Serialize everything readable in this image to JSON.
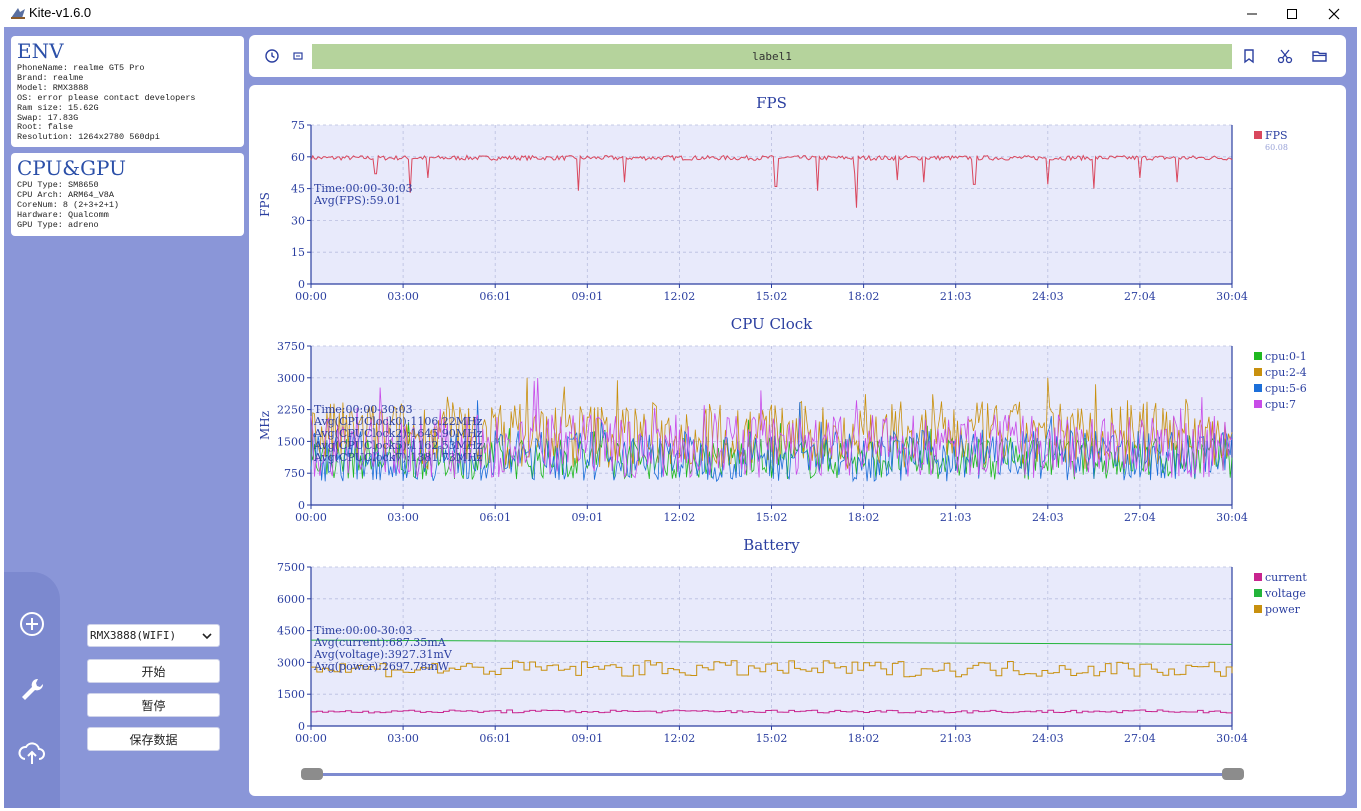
{
  "window": {
    "title": "Kite-v1.6.0"
  },
  "env": {
    "title": "ENV",
    "lines": [
      "PhoneName: realme GT5 Pro",
      "Brand: realme",
      "Model: RMX3888",
      "OS: error please contact developers",
      "Ram size: 15.62G",
      "Swap: 17.83G",
      "Root: false",
      "Resolution: 1264x2780 560dpi"
    ]
  },
  "cpugpu": {
    "title": "CPU&GPU",
    "lines": [
      "CPU Type: SM8650",
      "CPU Arch: ARM64_V8A",
      "CoreNum: 8 (2+3+2+1)",
      "Hardware: Qualcomm",
      "GPU Type: adreno"
    ]
  },
  "controls": {
    "device": "RMX3888(WIFI)",
    "start_label": "开始",
    "pause_label": "暂停",
    "save_label": "保存数据"
  },
  "toolbar": {
    "label": "label1"
  },
  "colors": {
    "background": "#8a96d8",
    "plot_bg": "#e8eafb",
    "axis": "#2b3fa0",
    "fps": "#d9475d",
    "cpu01": "#1fb81f",
    "cpu24": "#c8900e",
    "cpu56": "#1c6fd9",
    "cpu7": "#c84ce8",
    "current": "#c8248f",
    "voltage": "#22b43a",
    "power": "#c8900e",
    "label_bg": "#b5d39c"
  },
  "icons": {
    "left_dock": [
      "plus-circle-icon",
      "wrench-icon",
      "cloud-upload-icon"
    ],
    "toolbar_left": [
      "clock-icon",
      "screen-icon"
    ],
    "toolbar_right": [
      "bookmark-icon",
      "scissors-icon",
      "folder-open-icon"
    ]
  },
  "chart_data": [
    {
      "type": "line",
      "title": "FPS",
      "ylabel": "FPS",
      "ylim": [
        0,
        75
      ],
      "yticks": [
        "0",
        "15",
        "30",
        "45",
        "60",
        "75"
      ],
      "xticks": [
        "00:00",
        "03:00",
        "06:01",
        "09:01",
        "12:02",
        "15:02",
        "18:02",
        "21:03",
        "24:03",
        "27:04",
        "30:04"
      ],
      "series": [
        {
          "name": "FPS",
          "legend_sub": "60.08",
          "mean": 59.5,
          "dips": [
            [
              0.07,
              52
            ],
            [
              0.108,
              43
            ],
            [
              0.127,
              50
            ],
            [
              0.29,
              44
            ],
            [
              0.34,
              48
            ],
            [
              0.505,
              46
            ],
            [
              0.55,
              44
            ],
            [
              0.59,
              52
            ],
            [
              0.637,
              49
            ],
            [
              0.665,
              48
            ],
            [
              0.592,
              36
            ],
            [
              0.72,
              47
            ],
            [
              0.8,
              47
            ],
            [
              0.85,
              45
            ],
            [
              0.9,
              50
            ],
            [
              0.94,
              48
            ]
          ]
        }
      ],
      "annotation": [
        "Time:00:00-30:03",
        "Avg(FPS):59.01"
      ]
    },
    {
      "type": "line",
      "title": "CPU Clock",
      "ylabel": "MHz",
      "ylim": [
        0,
        3750
      ],
      "yticks": [
        "0",
        "750",
        "1500",
        "2250",
        "3000",
        "3750"
      ],
      "xticks": [
        "00:00",
        "03:00",
        "06:01",
        "09:01",
        "12:02",
        "15:02",
        "18:02",
        "21:03",
        "24:03",
        "27:04",
        "30:04"
      ],
      "series": [
        {
          "name": "cpu:0-1",
          "base": 1100,
          "range": 500
        },
        {
          "name": "cpu:2-4",
          "base": 1650,
          "range": 800
        },
        {
          "name": "cpu:5-6",
          "base": 1160,
          "range": 600
        },
        {
          "name": "cpu:7",
          "base": 1380,
          "range": 750
        }
      ],
      "annotation": [
        "Time:00:00-30:03",
        "Avg(CPUClock0):1106.22MHz",
        "Avg(CPUClock2):1645.90MHz",
        "Avg(CPUClock5):1162.53MHz",
        "Avg(CPUClock7):1381.73MHz"
      ]
    },
    {
      "type": "line",
      "title": "Battery",
      "ylim": [
        0,
        7500
      ],
      "yticks": [
        "0",
        "1500",
        "3000",
        "4500",
        "6000",
        "7500"
      ],
      "xticks": [
        "00:00",
        "03:00",
        "06:01",
        "09:01",
        "12:02",
        "15:02",
        "18:02",
        "21:03",
        "24:03",
        "27:04",
        "30:04"
      ],
      "series": [
        {
          "name": "current",
          "base": 687
        },
        {
          "name": "voltage",
          "start": 4050,
          "end": 3850
        },
        {
          "name": "power",
          "base": 2700
        }
      ],
      "annotation": [
        "Time:00:00-30:03",
        "Avg(current):687.35mA",
        "Avg(voltage):3927.31mV",
        "Avg(power):2697.78mW"
      ]
    }
  ]
}
